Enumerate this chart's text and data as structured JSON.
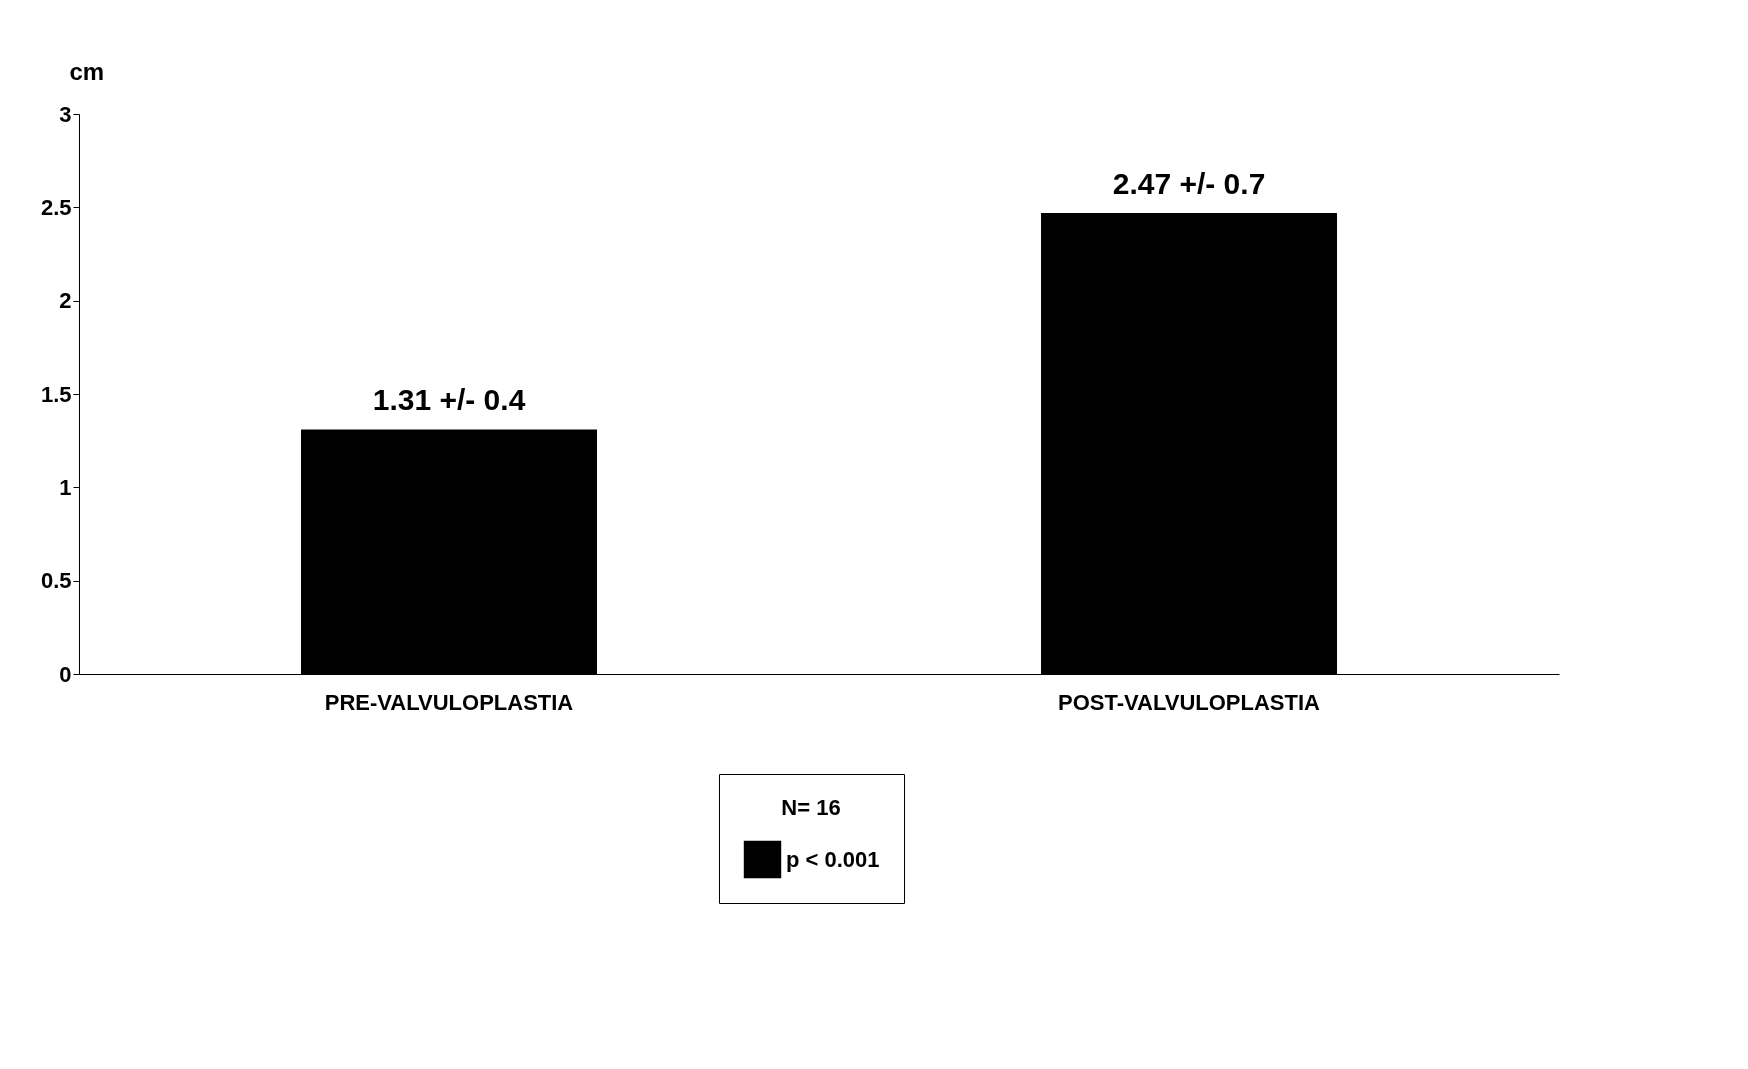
{
  "chart_data": {
    "type": "bar",
    "ylabel": "cm",
    "categories": [
      "PRE-VALVULOPLASTIA",
      "POST-VALVULOPLASTIA"
    ],
    "series": [
      {
        "name": "p < 0.001",
        "color": "#000000",
        "values": [
          1.31,
          2.47
        ],
        "value_labels": [
          "1.31 +/- 0.4",
          "2.47 +/- 0.7"
        ]
      }
    ],
    "legend_title": "N= 16",
    "legend": "bottom",
    "ylim": [
      0,
      3
    ],
    "yticks": [
      0,
      0.5,
      1,
      1.5,
      2,
      2.5,
      3
    ],
    "grid": false
  }
}
